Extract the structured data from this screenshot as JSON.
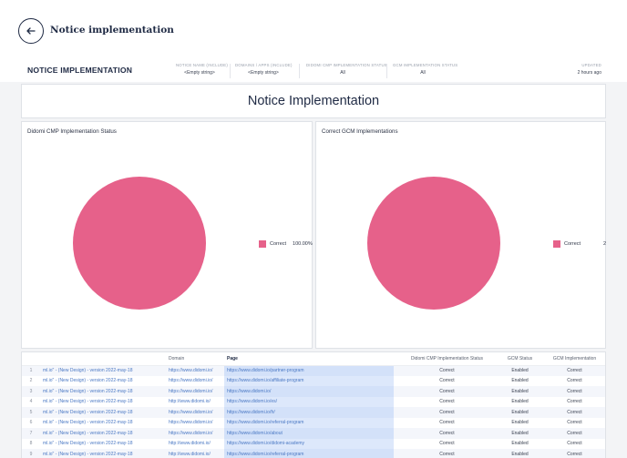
{
  "header": {
    "back_icon": "arrow-left-icon",
    "title": "Notice implementation"
  },
  "filters": {
    "report_title": "NOTICE IMPLEMENTATION",
    "items": [
      {
        "label": "NOTICE NAME (INCLUDE)",
        "value": "<Empty string>"
      },
      {
        "label": "DOMAINS / APPS (INCLUDE)",
        "value": "<Empty string>"
      },
      {
        "label": "DIDOMI CMP IMPLEMENTATION STATUS",
        "value": "All"
      },
      {
        "label": "GCM IMPLEMENTATION STATUS",
        "value": "All"
      }
    ],
    "updated_label": "UPDATED",
    "updated_value": "2 hours ago"
  },
  "report": {
    "heading": "Notice Implementation"
  },
  "chart_data": [
    {
      "type": "pie",
      "title": "Didomi CMP Implementation Status",
      "labels": [
        "Correct"
      ],
      "values": [
        100.0
      ],
      "legend_value": "100.00%",
      "legend_position": "right",
      "colors": [
        "#e6618a"
      ]
    },
    {
      "type": "pie",
      "title": "Correct GCM Implementations",
      "labels": [
        "Correct"
      ],
      "values": [
        2
      ],
      "legend_value": "2",
      "legend_position": "right",
      "colors": [
        "#e6618a"
      ]
    }
  ],
  "table": {
    "columns": [
      "",
      "",
      "Domain",
      "Page",
      "Didomi CMP Implementation Status",
      "GCM Status",
      "GCM Implementation"
    ],
    "rows": [
      [
        "1",
        "ml.io\" - (New Design) - version 2022-may-18",
        "https://www.didomi.io/",
        "https://www.didomi.io/partner-program",
        "Correct",
        "Enabled",
        "Correct"
      ],
      [
        "2",
        "ml.io\" - (New Design) - version 2022-may-18",
        "https://www.didomi.io/",
        "https://www.didomi.io/affiliate-program",
        "Correct",
        "Enabled",
        "Correct"
      ],
      [
        "3",
        "ml.io\" - (New Design) - version 2022-may-18",
        "https://www.didomi.io/",
        "https://www.didomi.io/",
        "Correct",
        "Enabled",
        "Correct"
      ],
      [
        "4",
        "ml.io\" - (New Design) - version 2022-may-18",
        "http://www.didomi.io/",
        "https://www.didomi.io/es/",
        "Correct",
        "Enabled",
        "Correct"
      ],
      [
        "5",
        "ml.io\" - (New Design) - version 2022-may-18",
        "https://www.didomi.io/",
        "https://www.didomi.io/fr/",
        "Correct",
        "Enabled",
        "Correct"
      ],
      [
        "6",
        "ml.io\" - (New Design) - version 2022-may-18",
        "https://www.didomi.io/",
        "https://www.didomi.io/referral-program",
        "Correct",
        "Enabled",
        "Correct"
      ],
      [
        "7",
        "ml.io\" - (New Design) - version 2022-may-18",
        "https://www.didomi.io/",
        "https://www.didomi.io/about",
        "Correct",
        "Enabled",
        "Correct"
      ],
      [
        "8",
        "ml.io\" - (New Design) - version 2022-may-18",
        "http://www.didomi.io/",
        "https://www.didomi.io/didomi-academy",
        "Correct",
        "Enabled",
        "Correct"
      ],
      [
        "9",
        "ml.io\" - (New Design) - version 2022-may-18",
        "http://www.didomi.io/",
        "https://www.didomi.io/referral-program",
        "Correct",
        "Enabled",
        "Correct"
      ]
    ]
  }
}
